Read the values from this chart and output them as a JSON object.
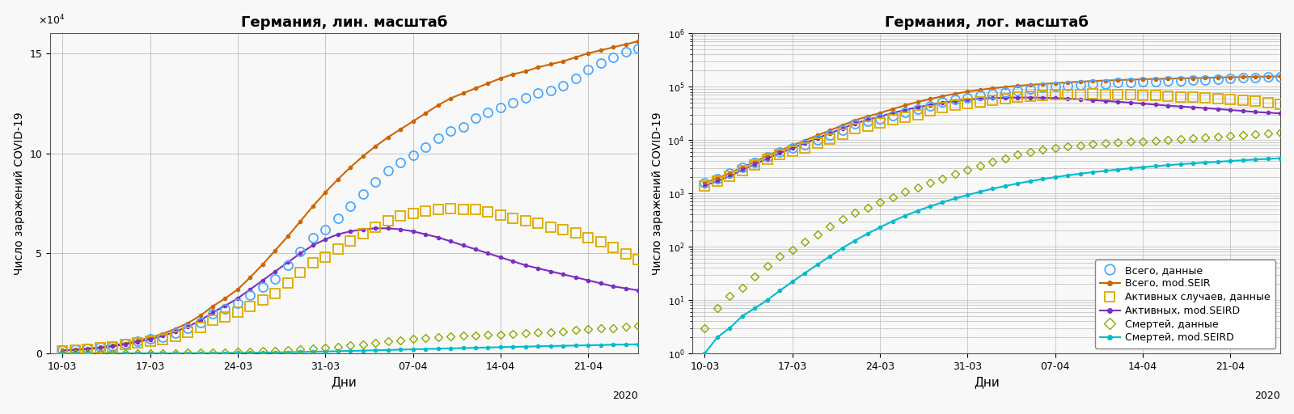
{
  "title_left": "Германия, лин. масштаб",
  "title_right": "Германия, лог. масштаб",
  "ylabel": "Число заражений COVID-19",
  "xlabel": "Дни",
  "year_label": "2020",
  "xtick_labels": [
    "10-03",
    "17-03",
    "24-03",
    "31-03",
    "07-04",
    "14-04",
    "21-04"
  ],
  "xtick_positions": [
    0,
    7,
    14,
    21,
    28,
    35,
    42
  ],
  "days": [
    0,
    1,
    2,
    3,
    4,
    5,
    6,
    7,
    8,
    9,
    10,
    11,
    12,
    13,
    14,
    15,
    16,
    17,
    18,
    19,
    20,
    21,
    22,
    23,
    24,
    25,
    26,
    27,
    28,
    29,
    30,
    31,
    32,
    33,
    34,
    35,
    36,
    37,
    38,
    39,
    40,
    41,
    42,
    43,
    44,
    45,
    46
  ],
  "total_data": [
    1567,
    1908,
    2369,
    3062,
    3795,
    4838,
    6012,
    7156,
    8198,
    10078,
    12327,
    15320,
    19848,
    22213,
    24873,
    29056,
    32986,
    37323,
    43938,
    50871,
    57695,
    61913,
    67366,
    73522,
    79696,
    85778,
    91159,
    95391,
    99225,
    103228,
    107663,
    111301,
    113296,
    117658,
    120479,
    123016,
    125098,
    127854,
    130072,
    131359,
    133830,
    137439,
    141672,
    145184,
    148046,
    150648,
    152438
  ],
  "total_model": [
    1567,
    1920,
    2380,
    3080,
    3900,
    5050,
    6350,
    7800,
    9800,
    12200,
    15100,
    18800,
    23500,
    27500,
    32000,
    38000,
    44500,
    51500,
    58500,
    66000,
    73500,
    80500,
    87000,
    93000,
    98500,
    103500,
    108000,
    112000,
    116000,
    120000,
    124000,
    127500,
    130000,
    132500,
    135000,
    137500,
    139500,
    141000,
    143000,
    144500,
    146000,
    148000,
    150000,
    151500,
    153000,
    154500,
    156000
  ],
  "active_data": [
    1391,
    1708,
    2100,
    2700,
    3360,
    4270,
    5280,
    6220,
    7060,
    8630,
    10490,
    12900,
    16590,
    18370,
    20560,
    23640,
    26700,
    29800,
    35000,
    40300,
    45200,
    48100,
    52000,
    56000,
    59900,
    63200,
    66200,
    68600,
    70100,
    71300,
    72000,
    72500,
    71900,
    71800,
    70700,
    69100,
    67600,
    66200,
    64900,
    63200,
    61800,
    60100,
    58000,
    55600,
    52800,
    49900,
    47000
  ],
  "active_model": [
    1391,
    1700,
    2100,
    2750,
    3500,
    4500,
    5700,
    7000,
    8700,
    10800,
    13300,
    16400,
    20500,
    23800,
    27500,
    32000,
    36500,
    41000,
    45500,
    50000,
    54000,
    57000,
    59500,
    61000,
    62000,
    62500,
    62500,
    62000,
    61000,
    59500,
    58000,
    56000,
    54000,
    52000,
    50000,
    48000,
    46000,
    44000,
    42500,
    41000,
    39500,
    38000,
    36500,
    35000,
    33500,
    32500,
    31500
  ],
  "deaths_data": [
    3,
    7,
    12,
    17,
    28,
    43,
    67,
    86,
    123,
    167,
    236,
    327,
    430,
    531,
    672,
    856,
    1061,
    1275,
    1584,
    1861,
    2349,
    2767,
    3254,
    3868,
    4543,
    5321,
    6012,
    6623,
    7119,
    7533,
    7928,
    8349,
    8736,
    9006,
    9232,
    9409,
    9675,
    10021,
    10364,
    10627,
    11093,
    11530,
    12100,
    12547,
    12722,
    13197,
    13649
  ],
  "deaths_model": [
    1,
    2,
    3,
    5,
    7,
    10,
    15,
    22,
    32,
    46,
    66,
    94,
    130,
    175,
    230,
    300,
    380,
    470,
    570,
    680,
    800,
    930,
    1070,
    1220,
    1370,
    1530,
    1690,
    1850,
    2010,
    2170,
    2330,
    2490,
    2640,
    2790,
    2940,
    3090,
    3230,
    3370,
    3510,
    3640,
    3780,
    3910,
    4040,
    4170,
    4300,
    4420,
    4540
  ],
  "colors": {
    "total_data": "#4daaff",
    "total_model": "#cc6600",
    "active_data": "#ddaa00",
    "active_model": "#7b2fbe",
    "deaths_data": "#88aa00",
    "deaths_model": "#00bbcc"
  },
  "legend_labels": [
    "Всего, данные",
    "Всего, mod.SEIR",
    "Активных случаев, данные",
    "Активных, mod.SEIRD",
    "Смертей, данные",
    "Смертей, mod.SEIRD"
  ],
  "ylim_lin": [
    0,
    160000
  ],
  "ylim_log": [
    1,
    1000000
  ],
  "yticks_lin": [
    0,
    50000,
    100000,
    150000
  ],
  "ytick_lin_labels": [
    "0",
    "5",
    "10",
    "15"
  ],
  "background_color": "#f8f8f8",
  "grid_color": "#bbbbbb"
}
